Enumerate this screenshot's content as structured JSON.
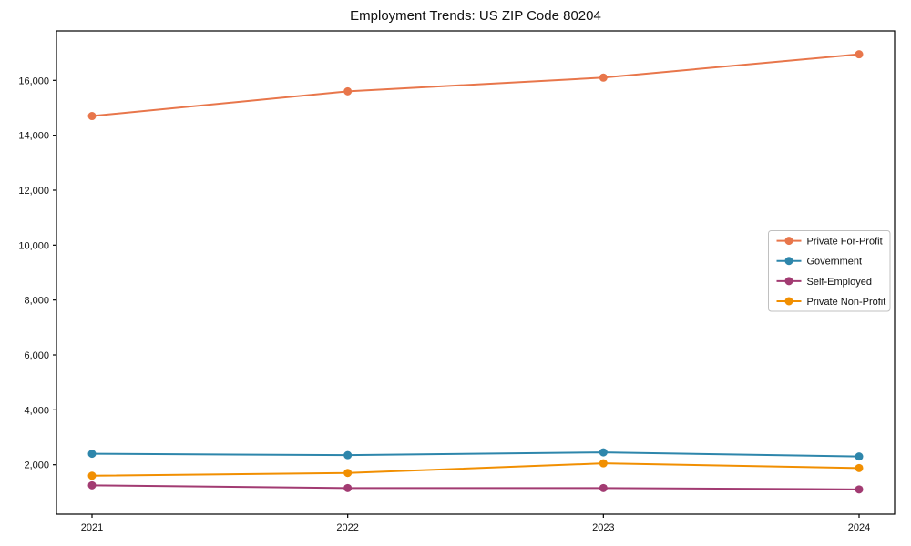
{
  "chart_data": {
    "type": "line",
    "title": "Employment Trends: US ZIP Code 80204",
    "categories": [
      "2021",
      "2022",
      "2023",
      "2024"
    ],
    "series": [
      {
        "name": "Private For-Profit",
        "color": "#E8764B",
        "values": [
          14700,
          15600,
          16100,
          16950
        ]
      },
      {
        "name": "Government",
        "color": "#2E86AB",
        "values": [
          2400,
          2350,
          2450,
          2300
        ]
      },
      {
        "name": "Self-Employed",
        "color": "#A23B72",
        "values": [
          1250,
          1150,
          1150,
          1100
        ]
      },
      {
        "name": "Private Non-Profit",
        "color": "#F18F01",
        "values": [
          1600,
          1700,
          2050,
          1880
        ]
      }
    ],
    "xlabel": "",
    "ylabel": "",
    "ylim": [
      200,
      17800
    ],
    "yticks": [
      2000,
      4000,
      6000,
      8000,
      10000,
      12000,
      14000,
      16000
    ],
    "ytick_labels": [
      "2,000",
      "4,000",
      "6,000",
      "8,000",
      "10,000",
      "12,000",
      "14,000",
      "16,000"
    ],
    "grid": false,
    "marker": "circle",
    "legend_position": "right-middle",
    "axis_color": "#000000",
    "tick_label_color": "#111111",
    "legend_border_color": "#c0c0c0",
    "background_color": "#ffffff"
  }
}
